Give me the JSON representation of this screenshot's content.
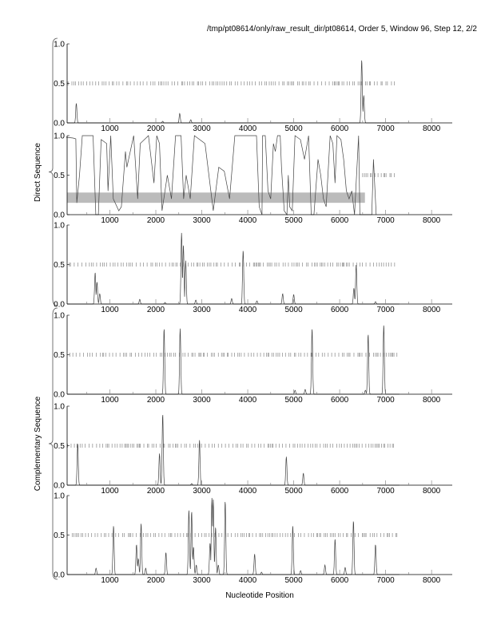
{
  "header": {
    "title": "/tmp/pt08614/only/raw_result_dir/pt08614, Order 5, Window 96, Step 12, 2/2"
  },
  "groups": [
    {
      "label": "Direct Sequence",
      "panels": [
        0,
        1,
        2
      ]
    },
    {
      "label": "Complementary Sequence",
      "panels": [
        3,
        4,
        5
      ]
    }
  ],
  "chart_data": {
    "type": "line",
    "xlabel": "Nucleotide Position",
    "xlim": [
      70,
      8450
    ],
    "ylim": [
      0,
      1
    ],
    "x_ticks": [
      1000,
      2000,
      3000,
      4000,
      5000,
      6000,
      7000,
      8000
    ],
    "y_ticks": [
      "0.0",
      "0.5",
      "1.0"
    ],
    "colors": {
      "line": "#444444",
      "ticks": "#888888",
      "band": "#bbbbbb",
      "axis": "#000000"
    },
    "panels": [
      {
        "frame": "direct-1",
        "stop_codon_span": [
          70,
          7250
        ],
        "peaks": [
          [
            270,
            0.25
          ],
          [
            2150,
            0.02
          ],
          [
            2520,
            0.12
          ],
          [
            2760,
            0.04
          ],
          [
            6480,
            0.8
          ],
          [
            6525,
            0.35
          ]
        ]
      },
      {
        "frame": "direct-2",
        "stop_codon_span": [
          6500,
          7240
        ],
        "highlight_band": {
          "x": [
            70,
            6550
          ],
          "y": [
            0.15,
            0.28
          ]
        },
        "curve": [
          [
            50,
            0.98
          ],
          [
            200,
            0.97
          ],
          [
            260,
            0.96
          ],
          [
            280,
            0.15
          ],
          [
            340,
            0.5
          ],
          [
            400,
            1.0
          ],
          [
            635,
            1.0
          ],
          [
            695,
            0.0
          ],
          [
            750,
            0.0
          ],
          [
            810,
            0.95
          ],
          [
            930,
            0.9
          ],
          [
            960,
            0.3
          ],
          [
            1020,
            1.0
          ],
          [
            1075,
            0.2
          ],
          [
            1195,
            0.05
          ],
          [
            1250,
            0.1
          ],
          [
            1340,
            0.8
          ],
          [
            1370,
            0.6
          ],
          [
            1518,
            1.0
          ],
          [
            1605,
            0.2
          ],
          [
            1660,
            0.9
          ],
          [
            1840,
            1.0
          ],
          [
            1960,
            0.4
          ],
          [
            2020,
            1.0
          ],
          [
            2080,
            0.9
          ],
          [
            2135,
            0.05
          ],
          [
            2250,
            0.5
          ],
          [
            2340,
            0.2
          ],
          [
            2430,
            1.0
          ],
          [
            2550,
            1.0
          ],
          [
            2605,
            0.2
          ],
          [
            2660,
            0.5
          ],
          [
            2750,
            0.2
          ],
          [
            2840,
            1.0
          ],
          [
            3070,
            0.9
          ],
          [
            3250,
            0.05
          ],
          [
            3370,
            0.6
          ],
          [
            3490,
            0.55
          ],
          [
            3605,
            0.2
          ],
          [
            3720,
            1.0
          ],
          [
            4190,
            1.0
          ],
          [
            4250,
            0.1
          ],
          [
            4310,
            0.0
          ],
          [
            4323,
            1.0
          ],
          [
            4382,
            1.0
          ],
          [
            4441,
            0.3
          ],
          [
            4500,
            0.2
          ],
          [
            4559,
            0.9
          ],
          [
            4600,
            0.8
          ],
          [
            4647,
            1.0
          ],
          [
            4706,
            1.0
          ],
          [
            4735,
            0.6
          ],
          [
            4794,
            0.05
          ],
          [
            4853,
            0.0
          ],
          [
            4882,
            0.5
          ],
          [
            4912,
            0.1
          ],
          [
            4970,
            0.05
          ],
          [
            5029,
            1.0
          ],
          [
            5147,
            0.95
          ],
          [
            5235,
            0.7
          ],
          [
            5324,
            1.0
          ],
          [
            5382,
            0.0
          ],
          [
            5441,
            0.0
          ],
          [
            5529,
            0.7
          ],
          [
            5588,
            0.5
          ],
          [
            5647,
            0.2
          ],
          [
            5706,
            0.1
          ],
          [
            5794,
            1.0
          ],
          [
            5853,
            0.9
          ],
          [
            5900,
            0.4
          ],
          [
            5941,
            1.0
          ],
          [
            6029,
            0.95
          ],
          [
            6088,
            0.7
          ],
          [
            6147,
            0.3
          ],
          [
            6206,
            0.2
          ],
          [
            6265,
            0.3
          ],
          [
            6324,
            0.0
          ],
          [
            6412,
            1.0
          ],
          [
            6441,
            0.0
          ],
          [
            6700,
            0.0
          ],
          [
            6735,
            0.7
          ],
          [
            6794,
            0.0
          ]
        ]
      },
      {
        "frame": "direct-3",
        "stop_codon_span": [
          120,
          7200
        ],
        "peaks": [
          [
            680,
            0.4
          ],
          [
            720,
            0.28
          ],
          [
            780,
            0.13
          ],
          [
            1650,
            0.06
          ],
          [
            2200,
            0.02
          ],
          [
            2560,
            0.9
          ],
          [
            2600,
            0.75
          ],
          [
            2650,
            0.55
          ],
          [
            2870,
            0.05
          ],
          [
            3650,
            0.07
          ],
          [
            3900,
            0.68
          ],
          [
            4200,
            0.04
          ],
          [
            4760,
            0.13
          ],
          [
            5000,
            0.12
          ],
          [
            6310,
            0.2
          ],
          [
            6360,
            0.5
          ],
          [
            6780,
            0.03
          ]
        ]
      },
      {
        "frame": "complementary-1",
        "stop_codon_span": [
          130,
          7250
        ],
        "peaks": [
          [
            2180,
            0.83
          ],
          [
            2530,
            0.83
          ],
          [
            5030,
            0.05
          ],
          [
            5250,
            0.06
          ],
          [
            5400,
            0.83
          ],
          [
            6560,
            0.05
          ],
          [
            6620,
            0.76
          ],
          [
            6960,
            0.88
          ]
        ]
      },
      {
        "frame": "complementary-2",
        "stop_codon_span": [
          80,
          7250
        ],
        "peaks": [
          [
            300,
            0.53
          ],
          [
            2080,
            0.4
          ],
          [
            2150,
            0.9
          ],
          [
            2780,
            0.02
          ],
          [
            2950,
            0.57
          ],
          [
            4840,
            0.36
          ],
          [
            5210,
            0.15
          ]
        ]
      },
      {
        "frame": "complementary-3",
        "stop_codon_span": [
          180,
          7250
        ],
        "peaks": [
          [
            700,
            0.08
          ],
          [
            1080,
            0.62
          ],
          [
            1580,
            0.38
          ],
          [
            1620,
            0.2
          ],
          [
            1680,
            0.65
          ],
          [
            1780,
            0.08
          ],
          [
            2220,
            0.28
          ],
          [
            2720,
            0.82
          ],
          [
            2780,
            0.8
          ],
          [
            2820,
            0.35
          ],
          [
            2880,
            0.12
          ],
          [
            3180,
            0.4
          ],
          [
            3220,
            0.97
          ],
          [
            3250,
            0.95
          ],
          [
            3300,
            0.6
          ],
          [
            3360,
            0.12
          ],
          [
            3510,
            0.93
          ],
          [
            4150,
            0.26
          ],
          [
            4300,
            0.03
          ],
          [
            4980,
            0.62
          ],
          [
            5150,
            0.05
          ],
          [
            5680,
            0.12
          ],
          [
            5900,
            0.45
          ],
          [
            6120,
            0.09
          ],
          [
            6300,
            0.68
          ],
          [
            6780,
            0.38
          ]
        ]
      }
    ]
  }
}
